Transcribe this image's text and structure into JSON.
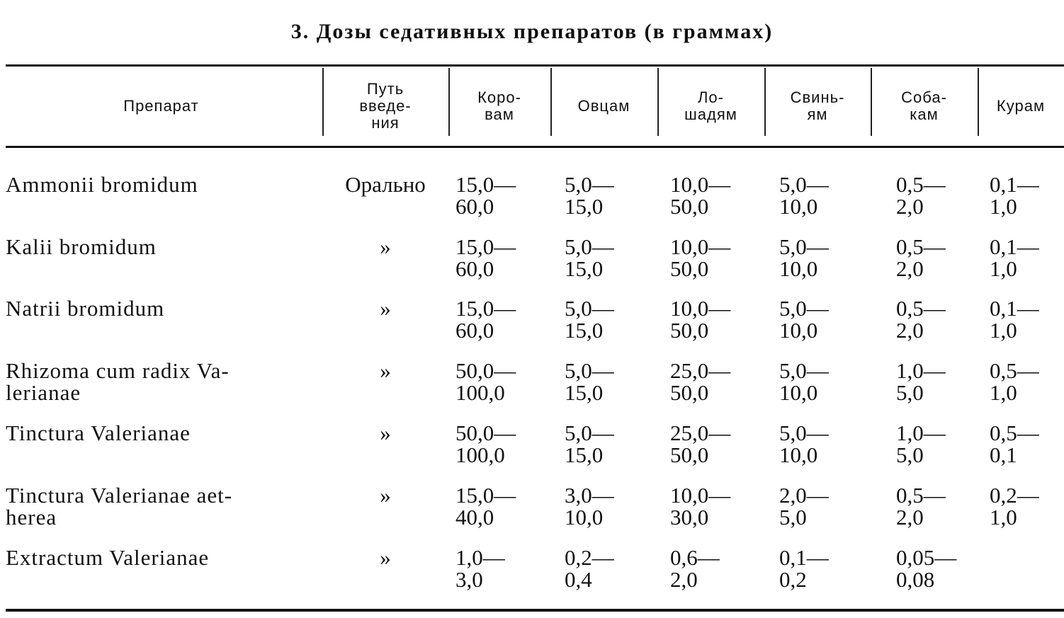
{
  "title": "3. Дозы седативных препаратов (в граммах)",
  "columns": [
    "Препарат",
    "Путь введе-ния",
    "Коро-вам",
    "Овцам",
    "Ло-шадям",
    "Свинь-ям",
    "Соба-кам",
    "Курам"
  ],
  "rows": [
    {
      "name": "Ammonii bromidum",
      "route": "Орально",
      "doses": [
        "15,0—\n60,0",
        "5,0—\n15,0",
        "10,0—\n50,0",
        "5,0—\n10,0",
        "0,5—\n2,0",
        "0,1—\n1,0"
      ]
    },
    {
      "name": "Kalii bromidum",
      "route": "»",
      "doses": [
        "15,0—\n60,0",
        "5,0—\n15,0",
        "10,0—\n50,0",
        "5,0—\n10,0",
        "0,5—\n2,0",
        "0,1—\n1,0"
      ]
    },
    {
      "name": "Natrii bromidum",
      "route": "»",
      "doses": [
        "15,0—\n60,0",
        "5,0—\n15,0",
        "10,0—\n50,0",
        "5,0—\n10,0",
        "0,5—\n2,0",
        "0,1—\n1,0"
      ]
    },
    {
      "name": "Rhizoma cum radix Va-\n  lerianae",
      "route": "»",
      "doses": [
        "50,0—\n100,0",
        "5,0—\n15,0",
        "25,0—\n50,0",
        "5,0—\n10,0",
        "1,0—\n5,0",
        "0,5—\n1,0"
      ]
    },
    {
      "name": "Tinctura Valerianae",
      "route": "»",
      "doses": [
        "50,0—\n100,0",
        "5,0—\n15,0",
        "25,0—\n50,0",
        "5,0—\n10,0",
        "1,0—\n5,0",
        "0,5—\n0,1"
      ]
    },
    {
      "name": "Tinctura Valerianae aet-\n  herea",
      "route": "»",
      "doses": [
        "15,0—\n40,0",
        "3,0—\n10,0",
        "10,0—\n30,0",
        "2,0—\n5,0",
        "0,5—\n2,0",
        "0,2—\n1,0"
      ]
    },
    {
      "name": "Extractum Valerianae",
      "route": "»",
      "doses": [
        "1,0—\n3,0",
        "0,2—\n0,4",
        "0,6—\n2,0",
        "0,1—\n0,2",
        "0,05—\n0,08",
        ""
      ]
    }
  ]
}
